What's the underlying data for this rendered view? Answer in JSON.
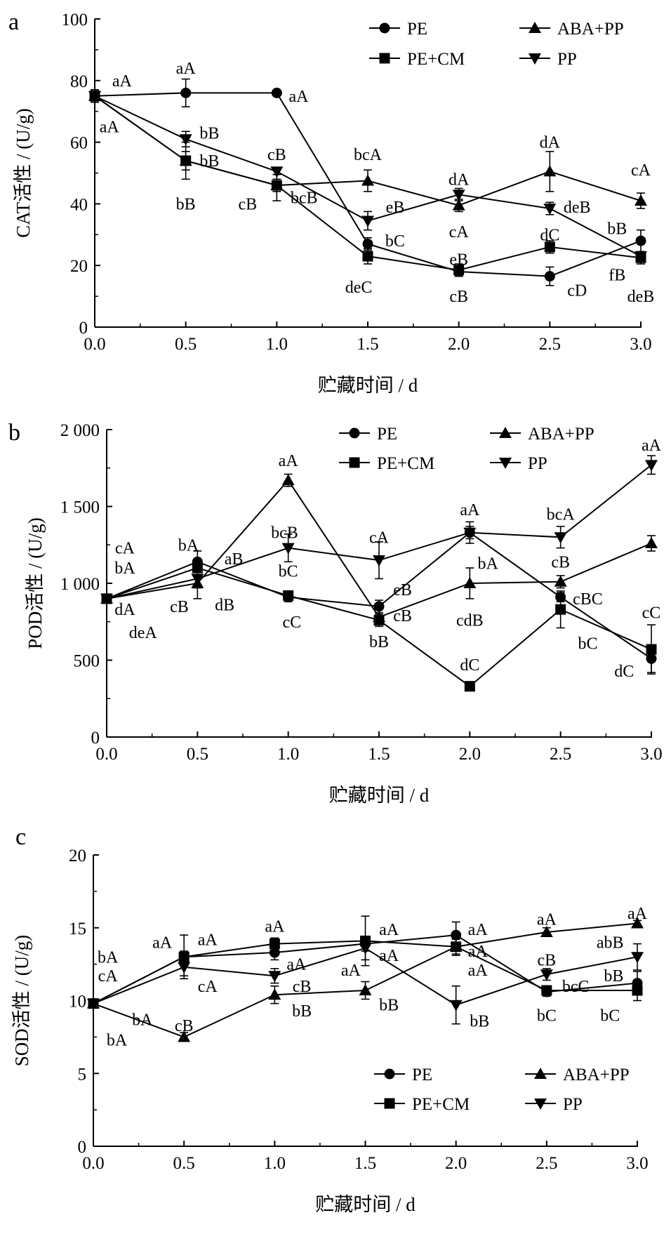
{
  "chart_data": [
    {
      "type": "line",
      "panel_label": "a",
      "xlabel": "贮藏时间 / d",
      "ylabel": "CAT活性 / (U/g)",
      "x": [
        0.0,
        0.5,
        1.0,
        1.5,
        2.0,
        2.5,
        3.0
      ],
      "x_tick_labels": [
        "0.0",
        "0.5",
        "1.0",
        "1.5",
        "2.0",
        "2.5",
        "3.0"
      ],
      "xlim": [
        0,
        3
      ],
      "ylim": [
        0,
        100
      ],
      "y_ticks": [
        0,
        20,
        40,
        60,
        80,
        100
      ],
      "y_tick_labels": [
        "0",
        "20",
        "40",
        "60",
        "80",
        "100"
      ],
      "grid": false,
      "legend_position": "top-right",
      "legend": [
        "PE",
        "ABA+PP",
        "PE+CM",
        "PP"
      ],
      "series": [
        {
          "name": "PE",
          "marker": "circle",
          "values": [
            75,
            76,
            76,
            27,
            18,
            16.5,
            28
          ],
          "errors": [
            2,
            4.5,
            0.5,
            2,
            1.5,
            3,
            3.5
          ]
        },
        {
          "name": "PE+CM",
          "marker": "square",
          "values": [
            75,
            54,
            46,
            23,
            18.5,
            26,
            22.5
          ],
          "errors": [
            2,
            6,
            5,
            2.5,
            2,
            2,
            2
          ]
        },
        {
          "name": "ABA+PP",
          "marker": "triangle-up",
          "values": [
            75,
            54,
            46,
            47.5,
            39.5,
            50.5,
            41
          ],
          "errors": [
            2,
            3,
            2,
            3.5,
            2,
            6.5,
            2.5
          ]
        },
        {
          "name": "PP",
          "marker": "triangle-down",
          "values": [
            75,
            61,
            50.5,
            34.5,
            43,
            38.5,
            23
          ],
          "errors": [
            2,
            2.5,
            1,
            3,
            2,
            2,
            1.5
          ]
        }
      ],
      "annotations": [
        {
          "text": "aA",
          "x": 0.15,
          "y": 80
        },
        {
          "text": "aA",
          "x": 0.08,
          "y": 65
        },
        {
          "text": "aA",
          "x": 0.5,
          "y": 84
        },
        {
          "text": "bB",
          "x": 0.63,
          "y": 63
        },
        {
          "text": "bB",
          "x": 0.63,
          "y": 54
        },
        {
          "text": "bB",
          "x": 0.5,
          "y": 40
        },
        {
          "text": "aA",
          "x": 1.12,
          "y": 75
        },
        {
          "text": "cB",
          "x": 1.0,
          "y": 56
        },
        {
          "text": "cB",
          "x": 0.84,
          "y": 40
        },
        {
          "text": "bcB",
          "x": 1.15,
          "y": 42
        },
        {
          "text": "bcA",
          "x": 1.5,
          "y": 56
        },
        {
          "text": "eB",
          "x": 1.65,
          "y": 39
        },
        {
          "text": "bC",
          "x": 1.65,
          "y": 28
        },
        {
          "text": "deC",
          "x": 1.45,
          "y": 13
        },
        {
          "text": "dA",
          "x": 2.0,
          "y": 48
        },
        {
          "text": "cA",
          "x": 2.0,
          "y": 31
        },
        {
          "text": "eB",
          "x": 2.0,
          "y": 22
        },
        {
          "text": "cB",
          "x": 2.0,
          "y": 10
        },
        {
          "text": "dA",
          "x": 2.5,
          "y": 60
        },
        {
          "text": "deB",
          "x": 2.65,
          "y": 39
        },
        {
          "text": "dC",
          "x": 2.5,
          "y": 30
        },
        {
          "text": "cD",
          "x": 2.65,
          "y": 12
        },
        {
          "text": "cA",
          "x": 3.0,
          "y": 51
        },
        {
          "text": "bB",
          "x": 2.87,
          "y": 32
        },
        {
          "text": "fB",
          "x": 2.87,
          "y": 17
        },
        {
          "text": "deB",
          "x": 3.0,
          "y": 10
        }
      ]
    },
    {
      "type": "line",
      "panel_label": "b",
      "xlabel": "贮藏时间 / d",
      "ylabel": "POD活性 / (U/g)",
      "x": [
        0.0,
        0.5,
        1.0,
        1.5,
        2.0,
        2.5,
        3.0
      ],
      "x_tick_labels": [
        "0.0",
        "0.5",
        "1.0",
        "1.5",
        "2.0",
        "2.5",
        "3.0"
      ],
      "xlim": [
        0,
        3
      ],
      "ylim": [
        0,
        2000
      ],
      "y_ticks": [
        0,
        500,
        1000,
        1500,
        2000
      ],
      "y_tick_labels": [
        "0",
        "500",
        "1 000",
        "1 500",
        "2 000"
      ],
      "grid": false,
      "legend_position": "top-right",
      "legend": [
        "PE",
        "ABA+PP",
        "PE+CM",
        "PP"
      ],
      "series": [
        {
          "name": "PE",
          "marker": "circle",
          "values": [
            900,
            1140,
            910,
            850,
            1330,
            910,
            510
          ],
          "errors": [
            30,
            70,
            30,
            40,
            40,
            30,
            90
          ]
        },
        {
          "name": "PE+CM",
          "marker": "square",
          "values": [
            900,
            1100,
            920,
            760,
            330,
            830,
            570
          ],
          "errors": [
            30,
            50,
            30,
            40,
            30,
            120,
            160
          ]
        },
        {
          "name": "ABA+PP",
          "marker": "triangle-up",
          "values": [
            900,
            1000,
            1670,
            780,
            1000,
            1010,
            1260
          ],
          "errors": [
            30,
            100,
            40,
            60,
            100,
            40,
            50
          ]
        },
        {
          "name": "PP",
          "marker": "triangle-down",
          "values": [
            900,
            1030,
            1230,
            1150,
            1330,
            1300,
            1770
          ],
          "errors": [
            30,
            60,
            90,
            120,
            70,
            70,
            60
          ]
        }
      ],
      "annotations": [
        {
          "text": "cA",
          "x": 0.1,
          "y": 1230
        },
        {
          "text": "bA",
          "x": 0.1,
          "y": 1100
        },
        {
          "text": "dA",
          "x": 0.1,
          "y": 830
        },
        {
          "text": "deA",
          "x": 0.2,
          "y": 680
        },
        {
          "text": "bA",
          "x": 0.45,
          "y": 1250
        },
        {
          "text": "aB",
          "x": 0.7,
          "y": 1160
        },
        {
          "text": "cB",
          "x": 0.4,
          "y": 850
        },
        {
          "text": "dB",
          "x": 0.65,
          "y": 860
        },
        {
          "text": "aA",
          "x": 1.0,
          "y": 1800
        },
        {
          "text": "bcB",
          "x": 0.98,
          "y": 1330
        },
        {
          "text": "bC",
          "x": 1.0,
          "y": 1080
        },
        {
          "text": "cC",
          "x": 1.02,
          "y": 750
        },
        {
          "text": "cA",
          "x": 1.5,
          "y": 1300
        },
        {
          "text": "eB",
          "x": 1.63,
          "y": 960
        },
        {
          "text": "cB",
          "x": 1.63,
          "y": 790
        },
        {
          "text": "bB",
          "x": 1.5,
          "y": 620
        },
        {
          "text": "aA",
          "x": 2.0,
          "y": 1480
        },
        {
          "text": "bA",
          "x": 2.1,
          "y": 1130
        },
        {
          "text": "cdB",
          "x": 2.0,
          "y": 760
        },
        {
          "text": "dC",
          "x": 2.0,
          "y": 470
        },
        {
          "text": "bcA",
          "x": 2.5,
          "y": 1450
        },
        {
          "text": "cB",
          "x": 2.5,
          "y": 1140
        },
        {
          "text": "cBC",
          "x": 2.65,
          "y": 900
        },
        {
          "text": "bC",
          "x": 2.65,
          "y": 610
        },
        {
          "text": "aA",
          "x": 3.0,
          "y": 1900
        },
        {
          "text": "cC",
          "x": 3.0,
          "y": 810
        },
        {
          "text": "dC",
          "x": 2.85,
          "y": 430
        }
      ]
    },
    {
      "type": "line",
      "panel_label": "c",
      "xlabel": "贮藏时间 / d",
      "ylabel": "SOD活性 / (U/g)",
      "x": [
        0.0,
        0.5,
        1.0,
        1.5,
        2.0,
        2.5,
        3.0
      ],
      "x_tick_labels": [
        "0.0",
        "0.5",
        "1.0",
        "1.5",
        "2.0",
        "2.5",
        "3.0"
      ],
      "xlim": [
        0,
        3
      ],
      "ylim": [
        0,
        20
      ],
      "y_ticks": [
        0,
        5,
        10,
        15,
        20
      ],
      "y_tick_labels": [
        "0",
        "5",
        "10",
        "15",
        "20"
      ],
      "grid": false,
      "legend_position": "bottom-right",
      "legend": [
        "PE",
        "ABA+PP",
        "PE+CM",
        "PP"
      ],
      "series": [
        {
          "name": "PE",
          "marker": "circle",
          "values": [
            9.8,
            13.0,
            13.3,
            13.9,
            14.5,
            10.6,
            11.2
          ],
          "errors": [
            0.3,
            0.4,
            0.5,
            0.5,
            0.9,
            0.3,
            0.8
          ]
        },
        {
          "name": "PE+CM",
          "marker": "square",
          "values": [
            9.8,
            13.0,
            13.9,
            14.1,
            13.7,
            10.7,
            10.7
          ],
          "errors": [
            0.3,
            1.5,
            0.4,
            1.7,
            0.6,
            0.3,
            0.7
          ]
        },
        {
          "name": "ABA+PP",
          "marker": "triangle-up",
          "values": [
            9.8,
            7.5,
            10.4,
            10.7,
            13.7,
            14.7,
            15.3
          ],
          "errors": [
            0.3,
            0.3,
            0.6,
            0.6,
            0.5,
            0.3,
            0.2
          ]
        },
        {
          "name": "PP",
          "marker": "triangle-down",
          "values": [
            9.8,
            12.3,
            11.7,
            13.6,
            9.7,
            11.8,
            13.0
          ],
          "errors": [
            0.3,
            0.6,
            0.5,
            0.8,
            1.3,
            0.4,
            0.9
          ]
        }
      ],
      "annotations": [
        {
          "text": "bA",
          "x": 0.08,
          "y": 13.0
        },
        {
          "text": "cA",
          "x": 0.08,
          "y": 11.7
        },
        {
          "text": "bA",
          "x": 0.27,
          "y": 8.7
        },
        {
          "text": "bA",
          "x": 0.13,
          "y": 7.3
        },
        {
          "text": "aA",
          "x": 0.38,
          "y": 14.0
        },
        {
          "text": "aA",
          "x": 0.63,
          "y": 14.2
        },
        {
          "text": "cA",
          "x": 0.63,
          "y": 11.0
        },
        {
          "text": "cB",
          "x": 0.5,
          "y": 8.3
        },
        {
          "text": "aA",
          "x": 1.0,
          "y": 15.1
        },
        {
          "text": "aA",
          "x": 1.12,
          "y": 12.5
        },
        {
          "text": "cB",
          "x": 1.15,
          "y": 11.0
        },
        {
          "text": "bB",
          "x": 1.15,
          "y": 9.3
        },
        {
          "text": "aA",
          "x": 1.63,
          "y": 14.9
        },
        {
          "text": "aA",
          "x": 1.63,
          "y": 13.1
        },
        {
          "text": "aA",
          "x": 1.42,
          "y": 12.1
        },
        {
          "text": "bB",
          "x": 1.63,
          "y": 9.7
        },
        {
          "text": "aA",
          "x": 2.12,
          "y": 14.9
        },
        {
          "text": "aA",
          "x": 2.12,
          "y": 13.4
        },
        {
          "text": "aA",
          "x": 2.12,
          "y": 12.1
        },
        {
          "text": "bB",
          "x": 2.13,
          "y": 8.6
        },
        {
          "text": "aA",
          "x": 2.5,
          "y": 15.6
        },
        {
          "text": "cB",
          "x": 2.5,
          "y": 12.8
        },
        {
          "text": "bcC",
          "x": 2.66,
          "y": 11.0
        },
        {
          "text": "bC",
          "x": 2.5,
          "y": 9.0
        },
        {
          "text": "aA",
          "x": 3.0,
          "y": 16.0
        },
        {
          "text": "abB",
          "x": 2.85,
          "y": 14.0
        },
        {
          "text": "bB",
          "x": 2.87,
          "y": 11.7
        },
        {
          "text": "bC",
          "x": 2.85,
          "y": 9.0
        }
      ]
    }
  ]
}
